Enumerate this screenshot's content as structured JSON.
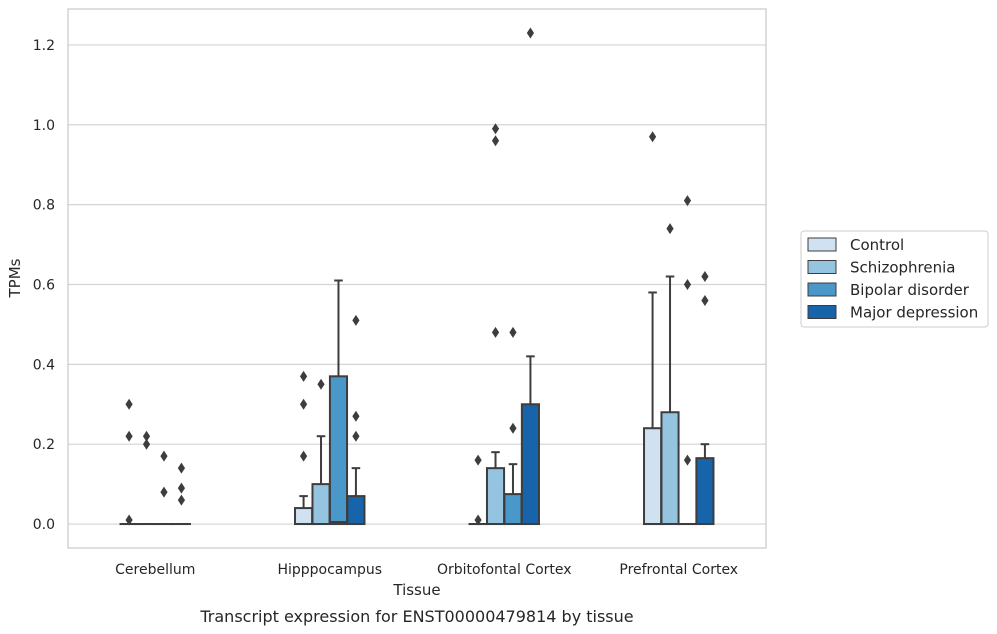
{
  "chart_data": {
    "type": "box",
    "xlabel": "Tissue",
    "ylabel": "TPMs",
    "caption": "Transcript expression for ENST00000479814 by tissue",
    "ylim": [
      -0.06,
      1.29
    ],
    "yticks": [
      "0.0",
      "0.2",
      "0.4",
      "0.6",
      "0.8",
      "1.0",
      "1.2"
    ],
    "grid": "horizontal",
    "legend_position": "right",
    "categories": [
      "Cerebellum",
      "Hipppocampus",
      "Orbitofontal Cortex",
      "Prefrontal Cortex"
    ],
    "series": [
      {
        "name": "Control",
        "color": "#d0e1f2",
        "boxes": [
          {
            "q1": 0,
            "median": 0,
            "q3": 0,
            "whisker_low": 0,
            "whisker_high": 0,
            "outliers": [
              0.3,
              0.22,
              0.01
            ]
          },
          {
            "q1": 0,
            "median": 0,
            "q3": 0.04,
            "whisker_low": 0,
            "whisker_high": 0.07,
            "outliers": [
              0.37,
              0.3,
              0.17
            ]
          },
          {
            "q1": 0,
            "median": 0,
            "q3": 0,
            "whisker_low": 0,
            "whisker_high": 0,
            "outliers": [
              0.16,
              0.01
            ]
          },
          {
            "q1": 0,
            "median": 0,
            "q3": 0.24,
            "whisker_low": 0,
            "whisker_high": 0.58,
            "outliers": [
              0.97
            ]
          }
        ]
      },
      {
        "name": "Schizophrenia",
        "color": "#94c4df",
        "boxes": [
          {
            "q1": 0,
            "median": 0,
            "q3": 0,
            "whisker_low": 0,
            "whisker_high": 0,
            "outliers": [
              0.22,
              0.2
            ]
          },
          {
            "q1": 0,
            "median": 0,
            "q3": 0.1,
            "whisker_low": 0,
            "whisker_high": 0.22,
            "outliers": [
              0.35
            ]
          },
          {
            "q1": 0,
            "median": 0,
            "q3": 0.14,
            "whisker_low": 0,
            "whisker_high": 0.18,
            "outliers": [
              0.99,
              0.96,
              0.48
            ]
          },
          {
            "q1": 0,
            "median": 0,
            "q3": 0.28,
            "whisker_low": 0,
            "whisker_high": 0.62,
            "outliers": [
              0.74
            ]
          }
        ]
      },
      {
        "name": "Bipolar disorder",
        "color": "#4a98c9",
        "boxes": [
          {
            "q1": 0,
            "median": 0,
            "q3": 0,
            "whisker_low": 0,
            "whisker_high": 0,
            "outliers": [
              0.17,
              0.08
            ]
          },
          {
            "q1": 0,
            "median": 0.005,
            "q3": 0.37,
            "whisker_low": 0,
            "whisker_high": 0.61,
            "outliers": []
          },
          {
            "q1": 0,
            "median": 0,
            "q3": 0.075,
            "whisker_low": 0,
            "whisker_high": 0.15,
            "outliers": [
              0.48,
              0.24
            ]
          },
          {
            "q1": 0,
            "median": 0,
            "q3": 0,
            "whisker_low": 0,
            "whisker_high": 0,
            "outliers": [
              0.81,
              0.6,
              0.16
            ]
          }
        ]
      },
      {
        "name": "Major depression",
        "color": "#1764ab",
        "boxes": [
          {
            "q1": 0,
            "median": 0,
            "q3": 0,
            "whisker_low": 0,
            "whisker_high": 0,
            "outliers": [
              0.14,
              0.09,
              0.06
            ]
          },
          {
            "q1": 0,
            "median": 0,
            "q3": 0.07,
            "whisker_low": 0,
            "whisker_high": 0.14,
            "outliers": [
              0.51,
              0.27,
              0.22
            ]
          },
          {
            "q1": 0,
            "median": 0,
            "q3": 0.3,
            "whisker_low": 0,
            "whisker_high": 0.42,
            "outliers": [
              1.23
            ]
          },
          {
            "q1": 0,
            "median": 0,
            "q3": 0.165,
            "whisker_low": 0,
            "whisker_high": 0.2,
            "outliers": [
              0.62,
              0.56
            ]
          }
        ]
      }
    ]
  }
}
